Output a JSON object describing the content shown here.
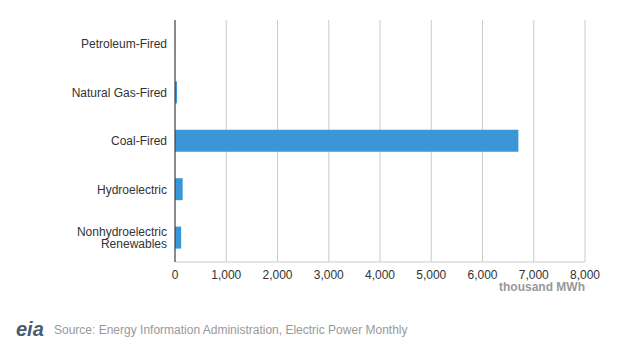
{
  "chart_data": {
    "type": "bar",
    "orientation": "horizontal",
    "categories": [
      "Petroleum-Fired",
      "Natural Gas-Fired",
      "Coal-Fired",
      "Hydroelectric",
      "Nonhydroelectric Renewables"
    ],
    "values": [
      2,
      40,
      6700,
      150,
      120
    ],
    "color": "#3a96d6",
    "xlim": [
      0,
      8000
    ],
    "xticks": [
      0,
      {
        "value": 1000,
        "label": "1,000"
      },
      {
        "value": 2000,
        "label": "2,000"
      },
      {
        "value": 3000,
        "label": "3,000"
      },
      {
        "value": 4000,
        "label": "4,000"
      },
      {
        "value": 5000,
        "label": "5,000"
      },
      {
        "value": 6000,
        "label": "6,000"
      },
      {
        "value": 7000,
        "label": "7,000"
      },
      {
        "value": 8000,
        "label": "8,000"
      }
    ],
    "x_label": "thousand MWh",
    "grid": true,
    "logo": "eia",
    "source": "Source: Energy Information Administration, Electric Power Monthly"
  }
}
